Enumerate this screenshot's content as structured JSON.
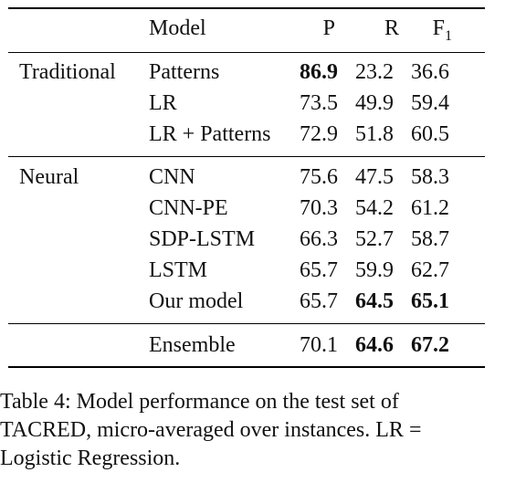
{
  "table": {
    "header": {
      "model": "Model",
      "p": "P",
      "r": "R",
      "f1": "F",
      "f1_sub": "1"
    },
    "groups": {
      "traditional": "Traditional",
      "neural": "Neural"
    },
    "rows": [
      {
        "model": "Patterns",
        "p": "86.9",
        "r": "23.2",
        "f1": "36.6",
        "bold": [
          "p"
        ]
      },
      {
        "model": "LR",
        "p": "73.5",
        "r": "49.9",
        "f1": "59.4",
        "bold": []
      },
      {
        "model": "LR + Patterns",
        "p": "72.9",
        "r": "51.8",
        "f1": "60.5",
        "bold": []
      },
      {
        "model": "CNN",
        "p": "75.6",
        "r": "47.5",
        "f1": "58.3",
        "bold": []
      },
      {
        "model": "CNN-PE",
        "p": "70.3",
        "r": "54.2",
        "f1": "61.2",
        "bold": []
      },
      {
        "model": "SDP-LSTM",
        "p": "66.3",
        "r": "52.7",
        "f1": "58.7",
        "bold": []
      },
      {
        "model": "LSTM",
        "p": "65.7",
        "r": "59.9",
        "f1": "62.7",
        "bold": []
      },
      {
        "model": "Our model",
        "p": "65.7",
        "r": "64.5",
        "f1": "65.1",
        "bold": [
          "r",
          "f1"
        ]
      },
      {
        "model": "Ensemble",
        "p": "70.1",
        "r": "64.6",
        "f1": "67.2",
        "bold": [
          "r",
          "f1"
        ]
      }
    ]
  },
  "caption": {
    "line1": "Table 4:  Model performance on the test set of",
    "line2": "TACRED, micro-averaged over instances.  LR =",
    "line3": "Logistic Regression."
  }
}
